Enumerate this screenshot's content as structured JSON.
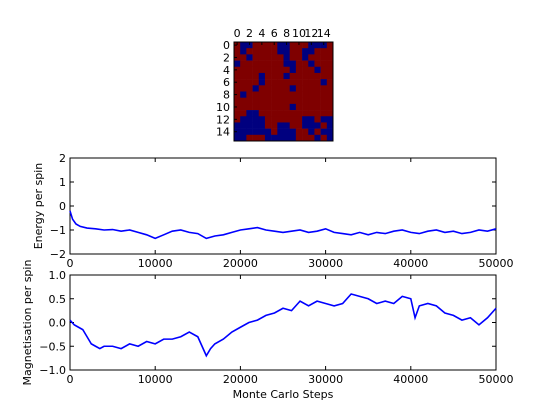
{
  "chart_data": [
    {
      "type": "heatmap",
      "title": "",
      "rows": 16,
      "cols": 16,
      "x_tick_labels": [
        "0",
        "2",
        "4",
        "6",
        "8",
        "10",
        "12",
        "14"
      ],
      "y_tick_labels": [
        "0",
        "2",
        "4",
        "6",
        "8",
        "10",
        "12",
        "14"
      ],
      "colors": {
        "up": "#7f0000",
        "down": "#00007f"
      },
      "grid": [
        [
          1,
          0,
          0,
          1,
          1,
          1,
          1,
          0,
          0,
          1,
          1,
          1,
          0,
          0,
          0,
          1
        ],
        [
          1,
          0,
          1,
          1,
          1,
          1,
          1,
          0,
          0,
          1,
          1,
          0,
          0,
          1,
          1,
          1
        ],
        [
          1,
          1,
          0,
          1,
          1,
          1,
          1,
          1,
          0,
          1,
          1,
          0,
          1,
          1,
          1,
          1
        ],
        [
          0,
          1,
          1,
          1,
          1,
          1,
          1,
          1,
          0,
          0,
          1,
          1,
          0,
          1,
          1,
          1
        ],
        [
          1,
          1,
          1,
          1,
          1,
          1,
          1,
          1,
          1,
          0,
          1,
          1,
          1,
          0,
          1,
          1
        ],
        [
          1,
          1,
          1,
          1,
          0,
          1,
          1,
          1,
          0,
          1,
          1,
          1,
          1,
          1,
          1,
          1
        ],
        [
          1,
          1,
          1,
          1,
          0,
          1,
          1,
          1,
          1,
          1,
          1,
          1,
          1,
          1,
          0,
          1
        ],
        [
          1,
          1,
          1,
          0,
          1,
          1,
          1,
          1,
          1,
          0,
          1,
          1,
          1,
          1,
          1,
          1
        ],
        [
          1,
          0,
          1,
          1,
          1,
          1,
          1,
          1,
          1,
          1,
          1,
          1,
          1,
          1,
          1,
          1
        ],
        [
          1,
          1,
          1,
          1,
          1,
          1,
          1,
          1,
          1,
          1,
          1,
          1,
          1,
          1,
          1,
          1
        ],
        [
          1,
          1,
          1,
          1,
          1,
          1,
          1,
          1,
          1,
          0,
          1,
          1,
          1,
          1,
          1,
          1
        ],
        [
          1,
          1,
          0,
          0,
          1,
          1,
          1,
          1,
          1,
          1,
          1,
          1,
          1,
          1,
          1,
          1
        ],
        [
          1,
          0,
          0,
          0,
          0,
          1,
          1,
          1,
          1,
          1,
          1,
          0,
          0,
          1,
          0,
          0
        ],
        [
          0,
          0,
          0,
          0,
          0,
          1,
          1,
          0,
          0,
          1,
          1,
          0,
          0,
          0,
          1,
          0
        ],
        [
          0,
          0,
          0,
          0,
          0,
          0,
          1,
          0,
          0,
          0,
          1,
          1,
          0,
          1,
          0,
          0
        ],
        [
          0,
          0,
          1,
          1,
          1,
          0,
          0,
          0,
          0,
          0,
          1,
          1,
          1,
          0,
          1,
          0
        ]
      ]
    },
    {
      "type": "line",
      "title": "",
      "xlabel": "",
      "ylabel": "Energy per spin",
      "xlim": [
        0,
        50000
      ],
      "ylim": [
        -2,
        2
      ],
      "x_ticks": [
        0,
        10000,
        20000,
        30000,
        40000,
        50000
      ],
      "y_ticks": [
        -2,
        -1,
        0,
        1,
        2
      ],
      "x_tick_labels": [
        "0",
        "10000",
        "20000",
        "30000",
        "40000",
        "50000"
      ],
      "y_tick_labels": [
        "−2",
        "−1",
        "0",
        "1",
        "2"
      ],
      "grid": false,
      "series": [
        {
          "color": "#0000ff",
          "x": [
            0,
            300,
            700,
            1200,
            2000,
            3000,
            4000,
            5000,
            6000,
            7000,
            8000,
            9000,
            10000,
            11000,
            12000,
            13000,
            14000,
            15000,
            16000,
            17000,
            18000,
            19000,
            20000,
            21000,
            22000,
            23000,
            24000,
            25000,
            26000,
            27000,
            28000,
            29000,
            30000,
            31000,
            32000,
            33000,
            34000,
            35000,
            36000,
            37000,
            38000,
            39000,
            40000,
            41000,
            42000,
            43000,
            44000,
            45000,
            46000,
            47000,
            48000,
            49000,
            50000
          ],
          "y": [
            -0.2,
            -0.55,
            -0.75,
            -0.85,
            -0.92,
            -0.95,
            -1.0,
            -0.98,
            -1.05,
            -1.0,
            -1.1,
            -1.2,
            -1.35,
            -1.2,
            -1.05,
            -1.0,
            -1.1,
            -1.15,
            -1.35,
            -1.25,
            -1.2,
            -1.1,
            -1.0,
            -0.95,
            -0.9,
            -1.0,
            -1.05,
            -1.1,
            -1.05,
            -1.0,
            -1.1,
            -1.05,
            -0.95,
            -1.1,
            -1.15,
            -1.2,
            -1.1,
            -1.2,
            -1.1,
            -1.15,
            -1.05,
            -1.0,
            -1.1,
            -1.15,
            -1.05,
            -1.0,
            -1.1,
            -1.05,
            -1.15,
            -1.1,
            -1.0,
            -1.05,
            -0.95
          ]
        }
      ]
    },
    {
      "type": "line",
      "title": "",
      "xlabel": "Monte Carlo Steps",
      "ylabel": "Magnetisation per spin",
      "xlim": [
        0,
        50000
      ],
      "ylim": [
        -1,
        1
      ],
      "x_ticks": [
        0,
        10000,
        20000,
        30000,
        40000,
        50000
      ],
      "y_ticks": [
        -1,
        -0.5,
        0,
        0.5,
        1
      ],
      "x_tick_labels": [
        "0",
        "10000",
        "20000",
        "30000",
        "40000",
        "50000"
      ],
      "y_tick_labels": [
        "−1.0",
        "−0.5",
        "0.0",
        "0.5",
        "1.0"
      ],
      "grid": false,
      "series": [
        {
          "color": "#0000ff",
          "x": [
            0,
            500,
            1000,
            1500,
            2000,
            2500,
            3000,
            3500,
            4000,
            5000,
            6000,
            7000,
            8000,
            9000,
            10000,
            11000,
            12000,
            13000,
            14000,
            15000,
            15500,
            16000,
            16500,
            17000,
            18000,
            19000,
            20000,
            21000,
            22000,
            23000,
            24000,
            25000,
            26000,
            27000,
            28000,
            29000,
            30000,
            31000,
            32000,
            33000,
            34000,
            35000,
            36000,
            37000,
            38000,
            39000,
            40000,
            40500,
            41000,
            42000,
            43000,
            44000,
            45000,
            46000,
            47000,
            48000,
            49000,
            50000
          ],
          "y": [
            0.05,
            -0.05,
            -0.1,
            -0.15,
            -0.3,
            -0.45,
            -0.5,
            -0.55,
            -0.5,
            -0.5,
            -0.55,
            -0.45,
            -0.5,
            -0.4,
            -0.45,
            -0.35,
            -0.35,
            -0.3,
            -0.2,
            -0.3,
            -0.5,
            -0.7,
            -0.55,
            -0.45,
            -0.35,
            -0.2,
            -0.1,
            0.0,
            0.05,
            0.15,
            0.2,
            0.3,
            0.25,
            0.45,
            0.35,
            0.45,
            0.4,
            0.35,
            0.4,
            0.6,
            0.55,
            0.5,
            0.4,
            0.45,
            0.4,
            0.55,
            0.5,
            0.1,
            0.35,
            0.4,
            0.35,
            0.2,
            0.15,
            0.05,
            0.1,
            -0.05,
            0.1,
            0.3
          ]
        }
      ]
    }
  ]
}
